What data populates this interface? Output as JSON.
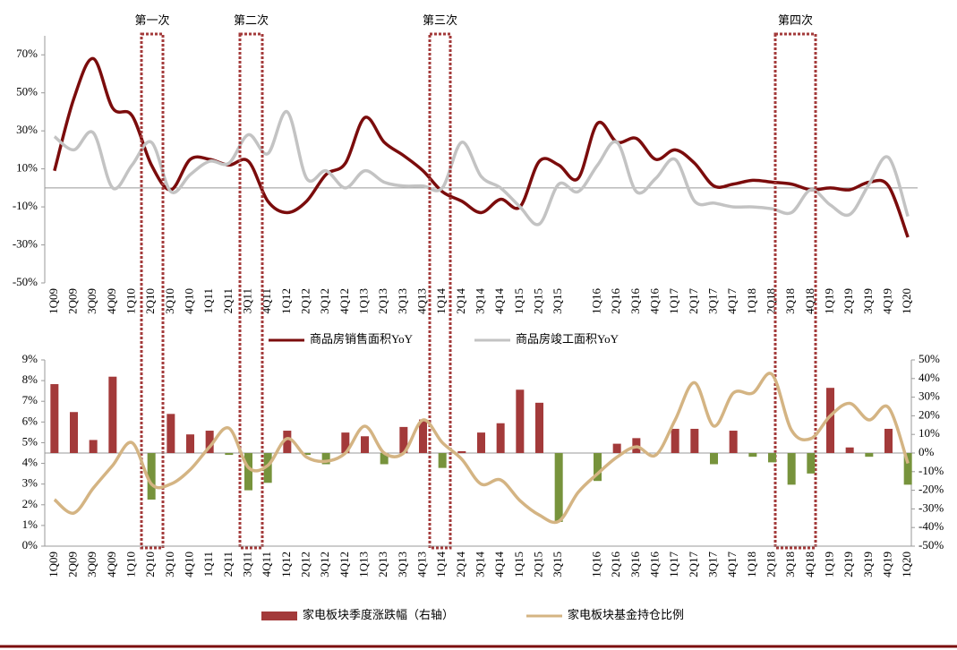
{
  "chart_data": [
    {
      "type": "line",
      "categories": [
        "1Q09",
        "2Q09",
        "3Q09",
        "4Q09",
        "1Q10",
        "2Q10",
        "3Q10",
        "4Q10",
        "1Q11",
        "2Q11",
        "3Q11",
        "4Q11",
        "1Q12",
        "2Q12",
        "3Q12",
        "4Q12",
        "1Q13",
        "2Q13",
        "3Q13",
        "4Q13",
        "1Q14",
        "2Q14",
        "3Q14",
        "4Q14",
        "1Q15",
        "2Q15",
        "3Q15",
        null,
        "1Q16",
        "2Q16",
        "3Q16",
        "4Q16",
        "1Q17",
        "2Q17",
        "3Q17",
        "4Q17",
        "1Q18",
        "2Q18",
        "3Q18",
        "4Q18",
        "1Q19",
        "2Q19",
        "3Q19",
        "4Q19",
        "1Q20"
      ],
      "series": [
        {
          "name": "商品房销售面积YoY",
          "color": "#7b0c0c",
          "values": [
            9,
            47,
            68,
            42,
            38,
            12,
            -1,
            15,
            15,
            12,
            14,
            -7,
            -13,
            -7,
            7,
            13,
            37,
            24,
            17,
            9,
            -2,
            -7,
            -13,
            -6,
            -10,
            14,
            12,
            5,
            34,
            24,
            26,
            15,
            20,
            13,
            1,
            2,
            4,
            3,
            2,
            -1,
            0,
            -1,
            3,
            1,
            -26
          ]
        },
        {
          "name": "商品房竣工面积YoY",
          "color": "#c3c3c3",
          "values": [
            27,
            20,
            29,
            0,
            12,
            24,
            -2,
            7,
            14,
            13,
            28,
            18,
            40,
            5,
            9,
            0,
            9,
            3,
            1,
            1,
            0,
            24,
            6,
            0,
            -10,
            -19,
            2,
            -2,
            12,
            24,
            -2,
            5,
            15,
            -7,
            -8,
            -10,
            -10,
            -11,
            -13,
            -1,
            -9,
            -14,
            2,
            16,
            -15
          ]
        }
      ],
      "ylim": [
        -50,
        80
      ],
      "yticks": [
        {
          "value": 70,
          "label": "70%"
        },
        {
          "value": 50,
          "label": "50%"
        },
        {
          "value": 30,
          "label": "30%"
        },
        {
          "value": 10,
          "label": "10%"
        },
        {
          "value": -10,
          "label": "-10%"
        },
        {
          "value": -30,
          "label": "-30%"
        },
        {
          "value": -50,
          "label": "-50%"
        }
      ],
      "annotations": [
        "第一次",
        "第二次",
        "第三次",
        "第四次"
      ]
    },
    {
      "type": "combo",
      "categories": [
        "1Q09",
        "2Q09",
        "3Q09",
        "4Q09",
        "1Q10",
        "2Q10",
        "3Q10",
        "4Q10",
        "1Q11",
        "2Q11",
        "3Q11",
        "4Q11",
        "1Q12",
        "2Q12",
        "3Q12",
        "4Q12",
        "1Q13",
        "2Q13",
        "3Q13",
        "4Q13",
        "1Q14",
        "2Q14",
        "3Q14",
        "4Q14",
        "1Q15",
        "2Q15",
        "3Q15",
        null,
        "1Q16",
        "2Q16",
        "3Q16",
        "4Q16",
        "1Q17",
        "2Q17",
        "3Q17",
        "4Q17",
        "1Q18",
        "2Q18",
        "3Q18",
        "4Q18",
        "1Q19",
        "2Q19",
        "3Q19",
        "4Q19",
        "1Q20"
      ],
      "series": [
        {
          "name": "家电板块季度涨跌幅（右轴）",
          "type": "bar",
          "axis": "y2",
          "color": "#a33a3a",
          "negative_color": "#77933c",
          "values": [
            37,
            22,
            7,
            41,
            0,
            -25,
            21,
            10,
            12,
            -1,
            -20,
            -16,
            12,
            -1,
            -6,
            11,
            9,
            -6,
            14,
            18,
            -8,
            1,
            11,
            16,
            34,
            27,
            -37,
            0,
            -15,
            5,
            8,
            0,
            13,
            13,
            -6,
            12,
            -2,
            -5,
            -17,
            -11,
            35,
            3,
            -2,
            13,
            -17
          ]
        },
        {
          "name": "家电板块基金持仓比例",
          "type": "line",
          "color": "#d4b483",
          "values": [
            2.25,
            1.6,
            2.8,
            3.9,
            5.0,
            3.0,
            3.0,
            3.7,
            4.8,
            5.7,
            3.8,
            3.9,
            5.2,
            4.3,
            4.1,
            4.5,
            5.8,
            4.5,
            4.5,
            6.1,
            5.0,
            4.2,
            3.0,
            3.2,
            2.2,
            1.5,
            1.2,
            2.6,
            3.5,
            4.3,
            4.8,
            4.4,
            6.1,
            7.9,
            5.8,
            7.4,
            7.4,
            8.3,
            5.6,
            5.2,
            6.3,
            6.9,
            6.1,
            6.7,
            4.0
          ]
        }
      ],
      "ylim": [
        0,
        9
      ],
      "yticks": [
        {
          "value": 9,
          "label": "9%"
        },
        {
          "value": 8,
          "label": "8%"
        },
        {
          "value": 7,
          "label": "7%"
        },
        {
          "value": 6,
          "label": "6%"
        },
        {
          "value": 5,
          "label": "5%"
        },
        {
          "value": 4,
          "label": "4%"
        },
        {
          "value": 3,
          "label": "3%"
        },
        {
          "value": 2,
          "label": "2%"
        },
        {
          "value": 1,
          "label": "1%"
        },
        {
          "value": 0,
          "label": "0%"
        }
      ],
      "y2lim": [
        -50,
        50
      ],
      "y2ticks": [
        {
          "value": 50,
          "label": "50%"
        },
        {
          "value": 40,
          "label": "40%"
        },
        {
          "value": 30,
          "label": "30%"
        },
        {
          "value": 20,
          "label": "20%"
        },
        {
          "value": 10,
          "label": "10%"
        },
        {
          "value": 0,
          "label": "0%"
        },
        {
          "value": -10,
          "label": "-10%"
        },
        {
          "value": -20,
          "label": "-20%"
        },
        {
          "value": -30,
          "label": "-30%"
        },
        {
          "value": -40,
          "label": "-40%"
        },
        {
          "value": -50,
          "label": "-50%"
        }
      ]
    }
  ]
}
